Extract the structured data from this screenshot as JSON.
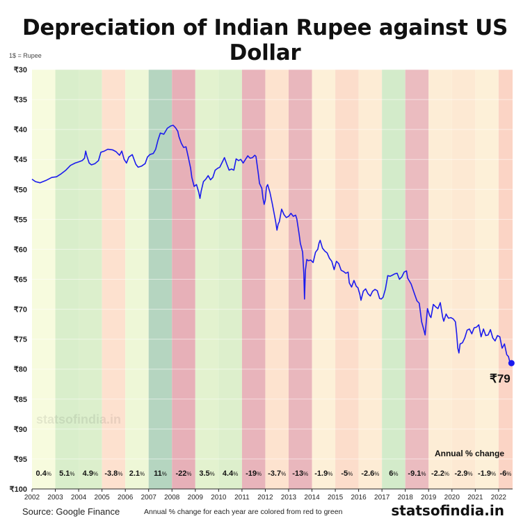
{
  "chart_data": {
    "type": "line",
    "title": "Depreciation of Indian Rupee against US Dollar",
    "unit_label": "1$ = Rupee",
    "y_ticks": [
      "₹30",
      "₹35",
      "₹40",
      "₹45",
      "₹50",
      "₹55",
      "₹60",
      "₹65",
      "₹70",
      "₹75",
      "₹80",
      "₹85",
      "₹90",
      "₹95",
      "₹100"
    ],
    "y_values": [
      30,
      35,
      40,
      45,
      50,
      55,
      60,
      65,
      70,
      75,
      80,
      85,
      90,
      95,
      100
    ],
    "ylim": [
      30,
      100
    ],
    "y_inverted": true,
    "x_ticks": [
      "2002",
      "2003",
      "2004",
      "2005",
      "2006",
      "2007",
      "2008",
      "2009",
      "2010",
      "2011",
      "2012",
      "2013",
      "2014",
      "2015",
      "2016",
      "2017",
      "2018",
      "2019",
      "2020",
      "2021",
      "2022"
    ],
    "xlim": [
      2002.0,
      2022.6
    ],
    "grid": true,
    "annual_change_header": "Annual % change",
    "annual_change": [
      {
        "year": 2002,
        "value": "0.4",
        "color": "#f7fbde"
      },
      {
        "year": 2003,
        "value": "5.1",
        "color": "#d9eecb"
      },
      {
        "year": 2004,
        "value": "4.9",
        "color": "#dcefcc"
      },
      {
        "year": 2005,
        "value": "-3.8",
        "color": "#fde1cf"
      },
      {
        "year": 2006,
        "value": "2.1",
        "color": "#eef7d7"
      },
      {
        "year": 2007,
        "value": "11",
        "color": "#b5d5c0"
      },
      {
        "year": 2008,
        "value": "-22",
        "color": "#e7b0b8"
      },
      {
        "year": 2009,
        "value": "3.5",
        "color": "#e3f2cf"
      },
      {
        "year": 2010,
        "value": "4.4",
        "color": "#ddefcc"
      },
      {
        "year": 2011,
        "value": "-19",
        "color": "#e8b4bb"
      },
      {
        "year": 2012,
        "value": "-3.7",
        "color": "#fde3cf"
      },
      {
        "year": 2013,
        "value": "-13",
        "color": "#e9b7bd"
      },
      {
        "year": 2014,
        "value": "-1.9",
        "color": "#fdf0d8"
      },
      {
        "year": 2015,
        "value": "-5",
        "color": "#fcddcb"
      },
      {
        "year": 2016,
        "value": "-2.6",
        "color": "#fdecd5"
      },
      {
        "year": 2017,
        "value": "6",
        "color": "#d3ebca"
      },
      {
        "year": 2018,
        "value": "-9.1",
        "color": "#ebbcc0"
      },
      {
        "year": 2019,
        "value": "-2.2",
        "color": "#fdedd6"
      },
      {
        "year": 2020,
        "value": "-2.9",
        "color": "#fde9d3"
      },
      {
        "year": 2021,
        "value": "-1.9",
        "color": "#fdf0d8"
      },
      {
        "year": 2022,
        "value": "-6",
        "color": "#fbd4c5"
      }
    ],
    "series": [
      {
        "line_color": "#1a1aee",
        "points": [
          [
            2002.0,
            48.3
          ],
          [
            2002.15,
            48.7
          ],
          [
            2002.35,
            48.9
          ],
          [
            2002.6,
            48.5
          ],
          [
            2002.85,
            48.0
          ],
          [
            2003.05,
            47.9
          ],
          [
            2003.25,
            47.4
          ],
          [
            2003.45,
            46.8
          ],
          [
            2003.65,
            46.0
          ],
          [
            2003.85,
            45.6
          ],
          [
            2004.0,
            45.4
          ],
          [
            2004.15,
            45.2
          ],
          [
            2004.25,
            44.8
          ],
          [
            2004.3,
            43.6
          ],
          [
            2004.35,
            44.4
          ],
          [
            2004.45,
            45.6
          ],
          [
            2004.55,
            45.9
          ],
          [
            2004.7,
            45.7
          ],
          [
            2004.85,
            45.2
          ],
          [
            2004.95,
            43.8
          ],
          [
            2005.1,
            43.6
          ],
          [
            2005.25,
            43.3
          ],
          [
            2005.45,
            43.4
          ],
          [
            2005.6,
            43.7
          ],
          [
            2005.75,
            44.3
          ],
          [
            2005.85,
            43.6
          ],
          [
            2005.95,
            45.0
          ],
          [
            2006.05,
            45.6
          ],
          [
            2006.15,
            44.6
          ],
          [
            2006.3,
            44.2
          ],
          [
            2006.45,
            45.8
          ],
          [
            2006.55,
            46.3
          ],
          [
            2006.7,
            46.1
          ],
          [
            2006.85,
            45.7
          ],
          [
            2006.95,
            44.6
          ],
          [
            2007.05,
            44.2
          ],
          [
            2007.2,
            44.0
          ],
          [
            2007.3,
            43.3
          ],
          [
            2007.4,
            41.8
          ],
          [
            2007.5,
            40.6
          ],
          [
            2007.65,
            40.8
          ],
          [
            2007.8,
            39.8
          ],
          [
            2007.95,
            39.4
          ],
          [
            2008.05,
            39.3
          ],
          [
            2008.15,
            39.7
          ],
          [
            2008.25,
            40.3
          ],
          [
            2008.3,
            41.2
          ],
          [
            2008.4,
            42.3
          ],
          [
            2008.5,
            43.0
          ],
          [
            2008.6,
            42.9
          ],
          [
            2008.7,
            44.6
          ],
          [
            2008.8,
            46.5
          ],
          [
            2008.85,
            48.0
          ],
          [
            2008.95,
            49.5
          ],
          [
            2009.05,
            49.2
          ],
          [
            2009.15,
            50.5
          ],
          [
            2009.2,
            51.5
          ],
          [
            2009.25,
            50.3
          ],
          [
            2009.35,
            48.7
          ],
          [
            2009.45,
            48.3
          ],
          [
            2009.55,
            47.7
          ],
          [
            2009.65,
            48.4
          ],
          [
            2009.75,
            48.0
          ],
          [
            2009.85,
            46.8
          ],
          [
            2009.95,
            46.5
          ],
          [
            2010.05,
            46.3
          ],
          [
            2010.15,
            45.5
          ],
          [
            2010.25,
            44.7
          ],
          [
            2010.35,
            45.8
          ],
          [
            2010.45,
            46.8
          ],
          [
            2010.55,
            46.6
          ],
          [
            2010.65,
            46.8
          ],
          [
            2010.75,
            44.9
          ],
          [
            2010.85,
            45.2
          ],
          [
            2010.95,
            45.0
          ],
          [
            2011.05,
            45.6
          ],
          [
            2011.15,
            45.0
          ],
          [
            2011.25,
            44.4
          ],
          [
            2011.35,
            44.8
          ],
          [
            2011.45,
            44.7
          ],
          [
            2011.55,
            44.3
          ],
          [
            2011.6,
            44.5
          ],
          [
            2011.7,
            47.4
          ],
          [
            2011.75,
            49.0
          ],
          [
            2011.85,
            49.8
          ],
          [
            2011.9,
            51.5
          ],
          [
            2011.95,
            52.5
          ],
          [
            2012.0,
            51.8
          ],
          [
            2012.05,
            49.6
          ],
          [
            2012.1,
            49.2
          ],
          [
            2012.2,
            50.5
          ],
          [
            2012.3,
            52.4
          ],
          [
            2012.4,
            54.5
          ],
          [
            2012.45,
            55.5
          ],
          [
            2012.5,
            56.8
          ],
          [
            2012.55,
            55.8
          ],
          [
            2012.6,
            55.4
          ],
          [
            2012.7,
            53.3
          ],
          [
            2012.8,
            54.2
          ],
          [
            2012.9,
            54.7
          ],
          [
            2013.0,
            54.5
          ],
          [
            2013.1,
            54.0
          ],
          [
            2013.2,
            54.5
          ],
          [
            2013.3,
            54.3
          ],
          [
            2013.35,
            54.9
          ],
          [
            2013.45,
            57.5
          ],
          [
            2013.5,
            59.0
          ],
          [
            2013.55,
            59.7
          ],
          [
            2013.6,
            60.5
          ],
          [
            2013.65,
            64.0
          ],
          [
            2013.68,
            68.3
          ],
          [
            2013.72,
            63.5
          ],
          [
            2013.78,
            61.7
          ],
          [
            2013.85,
            61.9
          ],
          [
            2013.95,
            61.8
          ],
          [
            2014.05,
            62.2
          ],
          [
            2014.15,
            60.5
          ],
          [
            2014.25,
            60.0
          ],
          [
            2014.3,
            59.0
          ],
          [
            2014.35,
            58.5
          ],
          [
            2014.45,
            59.8
          ],
          [
            2014.55,
            60.3
          ],
          [
            2014.65,
            60.6
          ],
          [
            2014.75,
            61.5
          ],
          [
            2014.85,
            62.0
          ],
          [
            2014.95,
            63.4
          ],
          [
            2015.05,
            62.0
          ],
          [
            2015.15,
            62.4
          ],
          [
            2015.25,
            63.5
          ],
          [
            2015.35,
            63.7
          ],
          [
            2015.45,
            64.0
          ],
          [
            2015.55,
            63.8
          ],
          [
            2015.6,
            65.6
          ],
          [
            2015.7,
            66.3
          ],
          [
            2015.8,
            65.2
          ],
          [
            2015.9,
            66.2
          ],
          [
            2015.97,
            66.4
          ],
          [
            2016.05,
            67.5
          ],
          [
            2016.1,
            68.5
          ],
          [
            2016.2,
            67.0
          ],
          [
            2016.3,
            66.6
          ],
          [
            2016.4,
            67.4
          ],
          [
            2016.5,
            67.8
          ],
          [
            2016.6,
            67.0
          ],
          [
            2016.7,
            66.7
          ],
          [
            2016.8,
            66.9
          ],
          [
            2016.9,
            68.2
          ],
          [
            2016.97,
            68.3
          ],
          [
            2017.05,
            68.0
          ],
          [
            2017.15,
            66.6
          ],
          [
            2017.25,
            64.4
          ],
          [
            2017.35,
            64.5
          ],
          [
            2017.45,
            64.3
          ],
          [
            2017.55,
            64.1
          ],
          [
            2017.65,
            64.0
          ],
          [
            2017.75,
            65.0
          ],
          [
            2017.85,
            64.6
          ],
          [
            2017.95,
            63.8
          ],
          [
            2018.05,
            63.6
          ],
          [
            2018.1,
            64.8
          ],
          [
            2018.25,
            65.8
          ],
          [
            2018.4,
            67.5
          ],
          [
            2018.5,
            68.6
          ],
          [
            2018.6,
            69.0
          ],
          [
            2018.7,
            72.1
          ],
          [
            2018.8,
            73.5
          ],
          [
            2018.85,
            74.3
          ],
          [
            2018.9,
            72.0
          ],
          [
            2018.95,
            69.9
          ],
          [
            2019.05,
            71.1
          ],
          [
            2019.1,
            71.4
          ],
          [
            2019.2,
            69.2
          ],
          [
            2019.3,
            69.6
          ],
          [
            2019.4,
            69.9
          ],
          [
            2019.5,
            68.9
          ],
          [
            2019.6,
            71.3
          ],
          [
            2019.65,
            72.0
          ],
          [
            2019.75,
            70.8
          ],
          [
            2019.85,
            71.5
          ],
          [
            2019.95,
            71.4
          ],
          [
            2020.05,
            71.6
          ],
          [
            2020.15,
            72.1
          ],
          [
            2020.2,
            74.0
          ],
          [
            2020.25,
            76.5
          ],
          [
            2020.3,
            77.3
          ],
          [
            2020.35,
            75.8
          ],
          [
            2020.45,
            75.6
          ],
          [
            2020.55,
            74.8
          ],
          [
            2020.65,
            73.5
          ],
          [
            2020.75,
            73.3
          ],
          [
            2020.85,
            74.1
          ],
          [
            2020.95,
            73.1
          ],
          [
            2021.05,
            73.0
          ],
          [
            2021.15,
            72.6
          ],
          [
            2021.25,
            74.6
          ],
          [
            2021.35,
            73.3
          ],
          [
            2021.45,
            74.4
          ],
          [
            2021.55,
            74.3
          ],
          [
            2021.65,
            73.4
          ],
          [
            2021.75,
            74.8
          ],
          [
            2021.85,
            75.3
          ],
          [
            2021.95,
            74.4
          ],
          [
            2022.05,
            74.6
          ],
          [
            2022.15,
            76.5
          ],
          [
            2022.25,
            75.8
          ],
          [
            2022.35,
            77.6
          ],
          [
            2022.42,
            77.9
          ],
          [
            2022.48,
            78.8
          ],
          [
            2022.55,
            79.0
          ]
        ]
      }
    ],
    "end_marker": {
      "x": 2022.55,
      "y": 79,
      "label": "₹79"
    }
  },
  "watermark": "statsofindia.in",
  "source": "Source: Google Finance",
  "footnote": "Annual % change for each year are colored from red to green",
  "brand": "statsofindia.in"
}
